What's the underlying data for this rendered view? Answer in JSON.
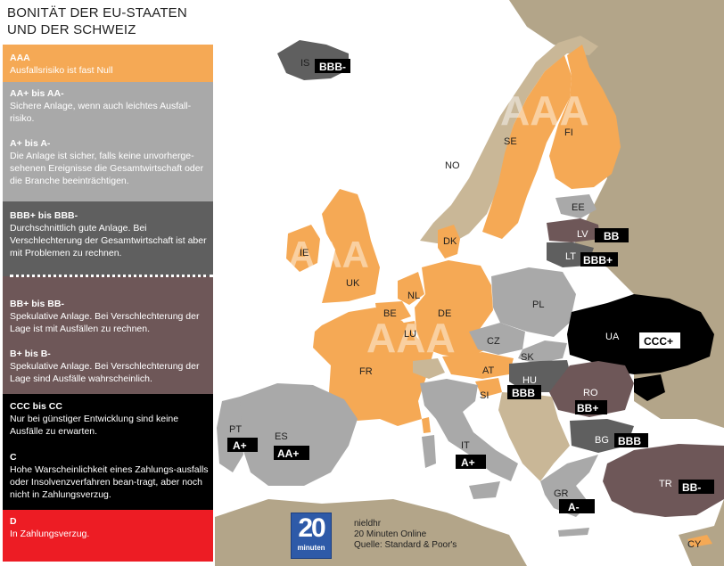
{
  "title": {
    "line1": "BONITÄT DER EU-STAATEN",
    "line2": "UND DER SCHWEIZ"
  },
  "colors": {
    "aaa": "#f5a955",
    "aa_a": "#a9a9a9",
    "bbb": "#5f5f5f",
    "bb_b": "#6e5758",
    "ccc": "#000000",
    "d": "#ed1c24",
    "non_rated": "#c9b797",
    "sea": "#ffffff",
    "noncountry": "#b3a589"
  },
  "legend": {
    "aaa": {
      "code": "AAA",
      "desc": "Ausfallsrisiko ist fast Null"
    },
    "aa": {
      "code": "AA+ bis AA-",
      "desc": "Sichere Anlage, wenn auch leichtes Ausfall-risiko."
    },
    "a": {
      "code": "A+ bis A-",
      "desc": "Die Anlage ist sicher, falls keine unvorherge-sehenen Ereignisse die Gesamtwirtschaft oder die Branche beeinträchtigen."
    },
    "bbb": {
      "code": "BBB+ bis BBB-",
      "desc": "Durchschnittlich gute Anlage. Bei Verschlechterung der Gesamtwirtschaft ist aber mit Problemen zu rechnen."
    },
    "bb": {
      "code": "BB+ bis BB-",
      "desc": "Spekulative Anlage. Bei Verschlechterung der Lage ist mit Ausfällen zu rechnen."
    },
    "b": {
      "code": "B+ bis B-",
      "desc": "Spekulative Anlage. Bei Verschlechterung der Lage sind Ausfälle wahrscheinlich."
    },
    "ccc": {
      "code": "CCC bis CC",
      "desc": "Nur bei günstiger Entwicklung sind keine Ausfälle zu erwarten."
    },
    "c": {
      "code": "C",
      "desc": "Hohe Warscheinlichkeit eines Zahlungs-ausfalls oder Insolvenzverfahren bean-tragt, aber noch nicht in Zahlungsverzug."
    },
    "d": {
      "code": "D",
      "desc": "In Zahlungsverzug."
    }
  },
  "countries": {
    "IS": "IS",
    "NO": "NO",
    "SE": "SE",
    "FI": "FI",
    "EE": "EE",
    "LV": "LV",
    "LT": "LT",
    "DK": "DK",
    "IE": "IE",
    "UK": "UK",
    "NL": "NL",
    "BE": "BE",
    "LU": "LU",
    "DE": "DE",
    "PL": "PL",
    "CZ": "CZ",
    "SK": "SK",
    "AT": "AT",
    "HU": "HU",
    "SI": "SI",
    "FR": "FR",
    "UA": "UA",
    "RO": "RO",
    "BG": "BG",
    "PT": "PT",
    "ES": "ES",
    "IT": "IT",
    "GR": "GR",
    "TR": "TR",
    "CY": "CY"
  },
  "ratings": {
    "IS": "BBB-",
    "LV": "BB",
    "LT": "BBB+",
    "UA": "CCC+",
    "HU": "BBB",
    "RO": "BB+",
    "BG": "BBB",
    "PT": "A+",
    "ES": "AA+",
    "IT": "A+",
    "GR": "A-",
    "TR": "BB-"
  },
  "watermark": {
    "aaa_nordic": "AAA",
    "aaa_uk": "AAA",
    "aaa_central": "AAA"
  },
  "footer": {
    "logo_number": "20",
    "logo_word": "minuten",
    "author": "nieldhr",
    "publisher": "20 Minuten Online",
    "source": "Quelle: Standard & Poor's"
  }
}
